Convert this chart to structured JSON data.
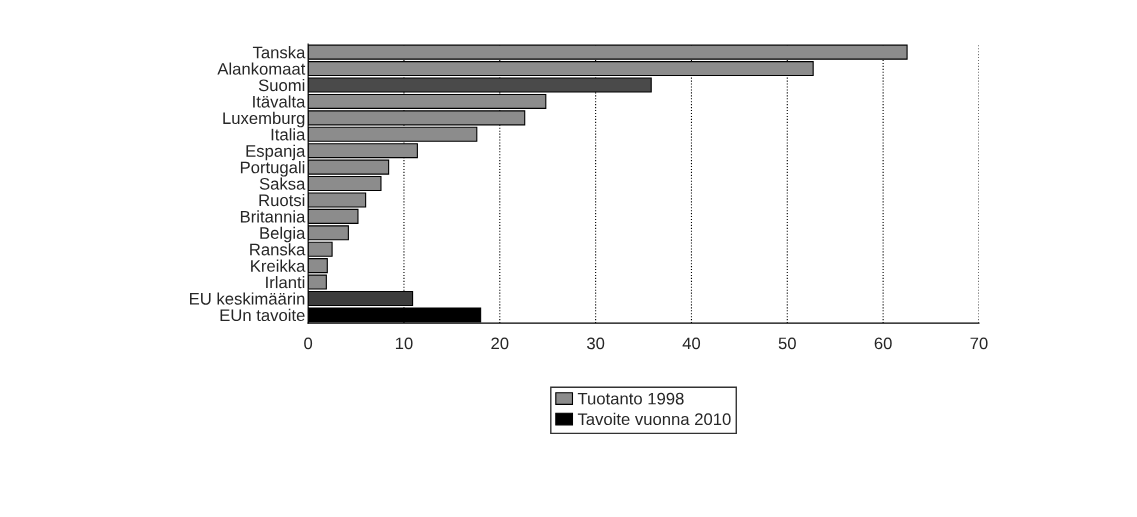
{
  "chart_data": {
    "type": "bar",
    "orientation": "horizontal",
    "categories": [
      "Tanska",
      "Alankomaat",
      "Suomi",
      "Itävalta",
      "Luxemburg",
      "Italia",
      "Espanja",
      "Portugali",
      "Saksa",
      "Ruotsi",
      "Britannia",
      "Belgia",
      "Ranska",
      "Kreikka",
      "Irlanti",
      "EU keskimäärin",
      "EUn tavoite"
    ],
    "series": [
      {
        "name": "Tuotanto 1998",
        "color": "#8c8c8c",
        "colors": [
          "#8c8c8c",
          "#8c8c8c",
          "#4a4a4a",
          "#8c8c8c",
          "#8c8c8c",
          "#8c8c8c",
          "#8c8c8c",
          "#8c8c8c",
          "#8c8c8c",
          "#8c8c8c",
          "#8c8c8c",
          "#8c8c8c",
          "#8c8c8c",
          "#8c8c8c",
          "#8c8c8c",
          "#3c3c3c",
          null
        ],
        "values": [
          62.5,
          52.7,
          35.8,
          24.8,
          22.6,
          17.6,
          11.4,
          8.4,
          7.6,
          6.0,
          5.2,
          4.2,
          2.5,
          2.0,
          1.9,
          10.9,
          null
        ]
      },
      {
        "name": "Tavoite vuonna 2010",
        "color": "#000000",
        "values": [
          null,
          null,
          null,
          null,
          null,
          null,
          null,
          null,
          null,
          null,
          null,
          null,
          null,
          null,
          null,
          null,
          18.0
        ]
      }
    ],
    "xlim": [
      0,
      70
    ],
    "xticks": [
      0,
      10,
      20,
      30,
      40,
      50,
      60,
      70
    ],
    "grid": "x",
    "legend": "bottom"
  }
}
